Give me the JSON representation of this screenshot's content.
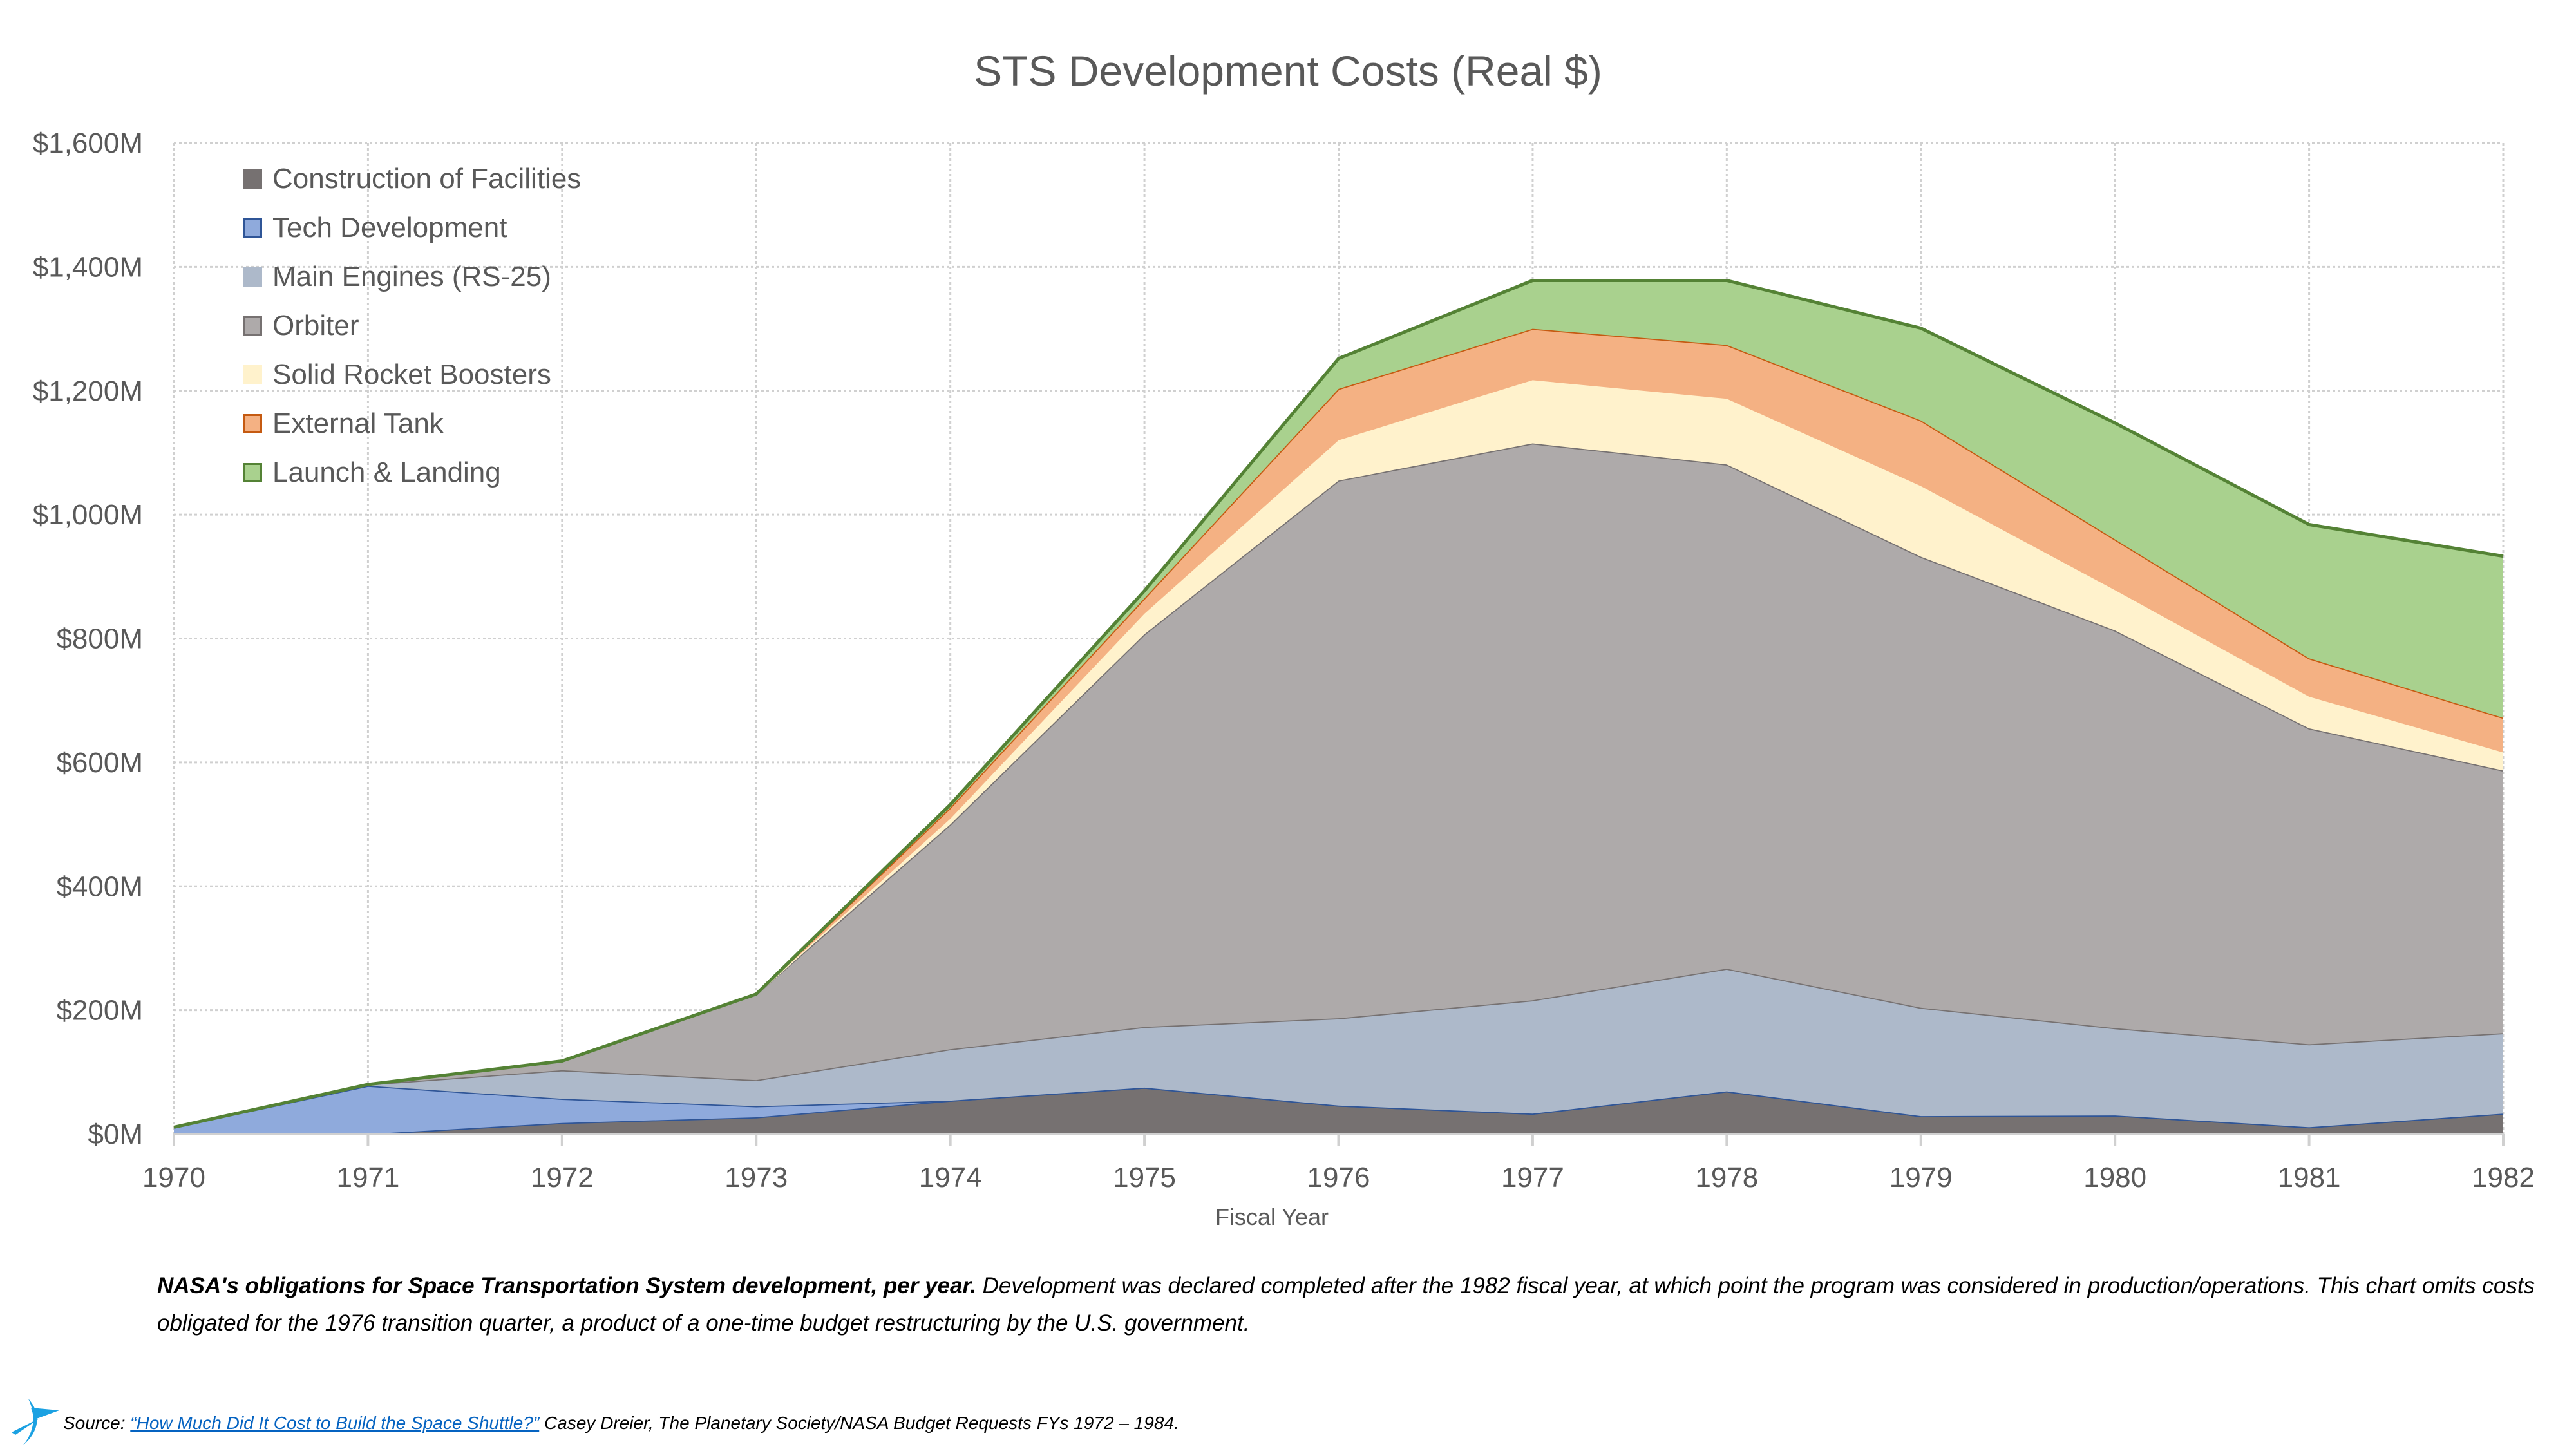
{
  "chart_data": {
    "type": "area",
    "stacked": true,
    "title": "STS Development Costs (Real $)",
    "xlabel": "Fiscal Year",
    "ylabel": "",
    "x": [
      "1970",
      "1971",
      "1972",
      "1973",
      "1974",
      "1975",
      "1976",
      "1977",
      "1978",
      "1979",
      "1980",
      "1981",
      "1982"
    ],
    "ylim": [
      0,
      1600
    ],
    "yticks": [
      0,
      200,
      400,
      600,
      800,
      1000,
      1200,
      1400,
      1600
    ],
    "ytick_labels": [
      "$0M",
      "$200M",
      "$400M",
      "$600M",
      "$800M",
      "$1,000M",
      "$1,200M",
      "$1,400M",
      "$1,600M"
    ],
    "units": "millions of real US dollars",
    "grid": true,
    "legend_position": "top-left",
    "series": [
      {
        "name": "Construction of Facilities",
        "fill": "#767171",
        "stroke": "#2f5597",
        "values": [
          0,
          0,
          18,
          27,
          54,
          75,
          46,
          33,
          69,
          29,
          30,
          11,
          33
        ]
      },
      {
        "name": "Tech Development",
        "fill": "#8faadc",
        "stroke": "#2f5597",
        "values": [
          11,
          78,
          39,
          18,
          0,
          0,
          0,
          0,
          0,
          0,
          0,
          0,
          0
        ]
      },
      {
        "name": "Main Engines (RS-25)",
        "fill": "#adb9ca",
        "stroke": "#767171",
        "values": [
          0,
          2,
          46,
          42,
          83,
          98,
          141,
          183,
          198,
          175,
          141,
          134,
          130
        ]
      },
      {
        "name": "Orbiter",
        "fill": "#aeaaaa",
        "stroke": "#767171",
        "values": [
          0,
          0,
          15,
          139,
          363,
          634,
          868,
          899,
          814,
          728,
          642,
          510,
          424
        ]
      },
      {
        "name": "Solid Rocket Boosters",
        "fill": "#fff2cc",
        "stroke": "#fff2cc",
        "values": [
          0,
          0,
          0,
          0,
          9,
          33,
          65,
          102,
          106,
          114,
          65,
          51,
          29
        ]
      },
      {
        "name": "External Tank",
        "fill": "#f4b183",
        "stroke": "#c55a11",
        "values": [
          0,
          0,
          0,
          0,
          18,
          25,
          83,
          83,
          87,
          106,
          82,
          62,
          56
        ]
      },
      {
        "name": "Launch & Landing",
        "fill": "#a9d18e",
        "stroke": "#548235",
        "values": [
          0,
          0,
          0,
          0,
          5,
          12,
          49,
          78,
          104,
          149,
          188,
          216,
          261
        ]
      }
    ]
  },
  "caption": {
    "bold": "NASA's obligations for Space Transportation System development, per year.",
    "rest": " Development was declared completed after the 1982 fiscal year, at which point the program was considered in production/operations. This chart omits costs obligated for the 1976 transition quarter, a product of a one-time budget restructuring by the U.S. government."
  },
  "source": {
    "prefix": "Source: ",
    "link_text": "“How Much Did It Cost to Build the Space Shuttle?”",
    "suffix": " Casey Dreier, The Planetary Society/NASA Budget Requests FYs 1972 – 1984."
  },
  "logo": {
    "icon": "planetary-society-logo-icon",
    "color": "#1ba1e2"
  }
}
